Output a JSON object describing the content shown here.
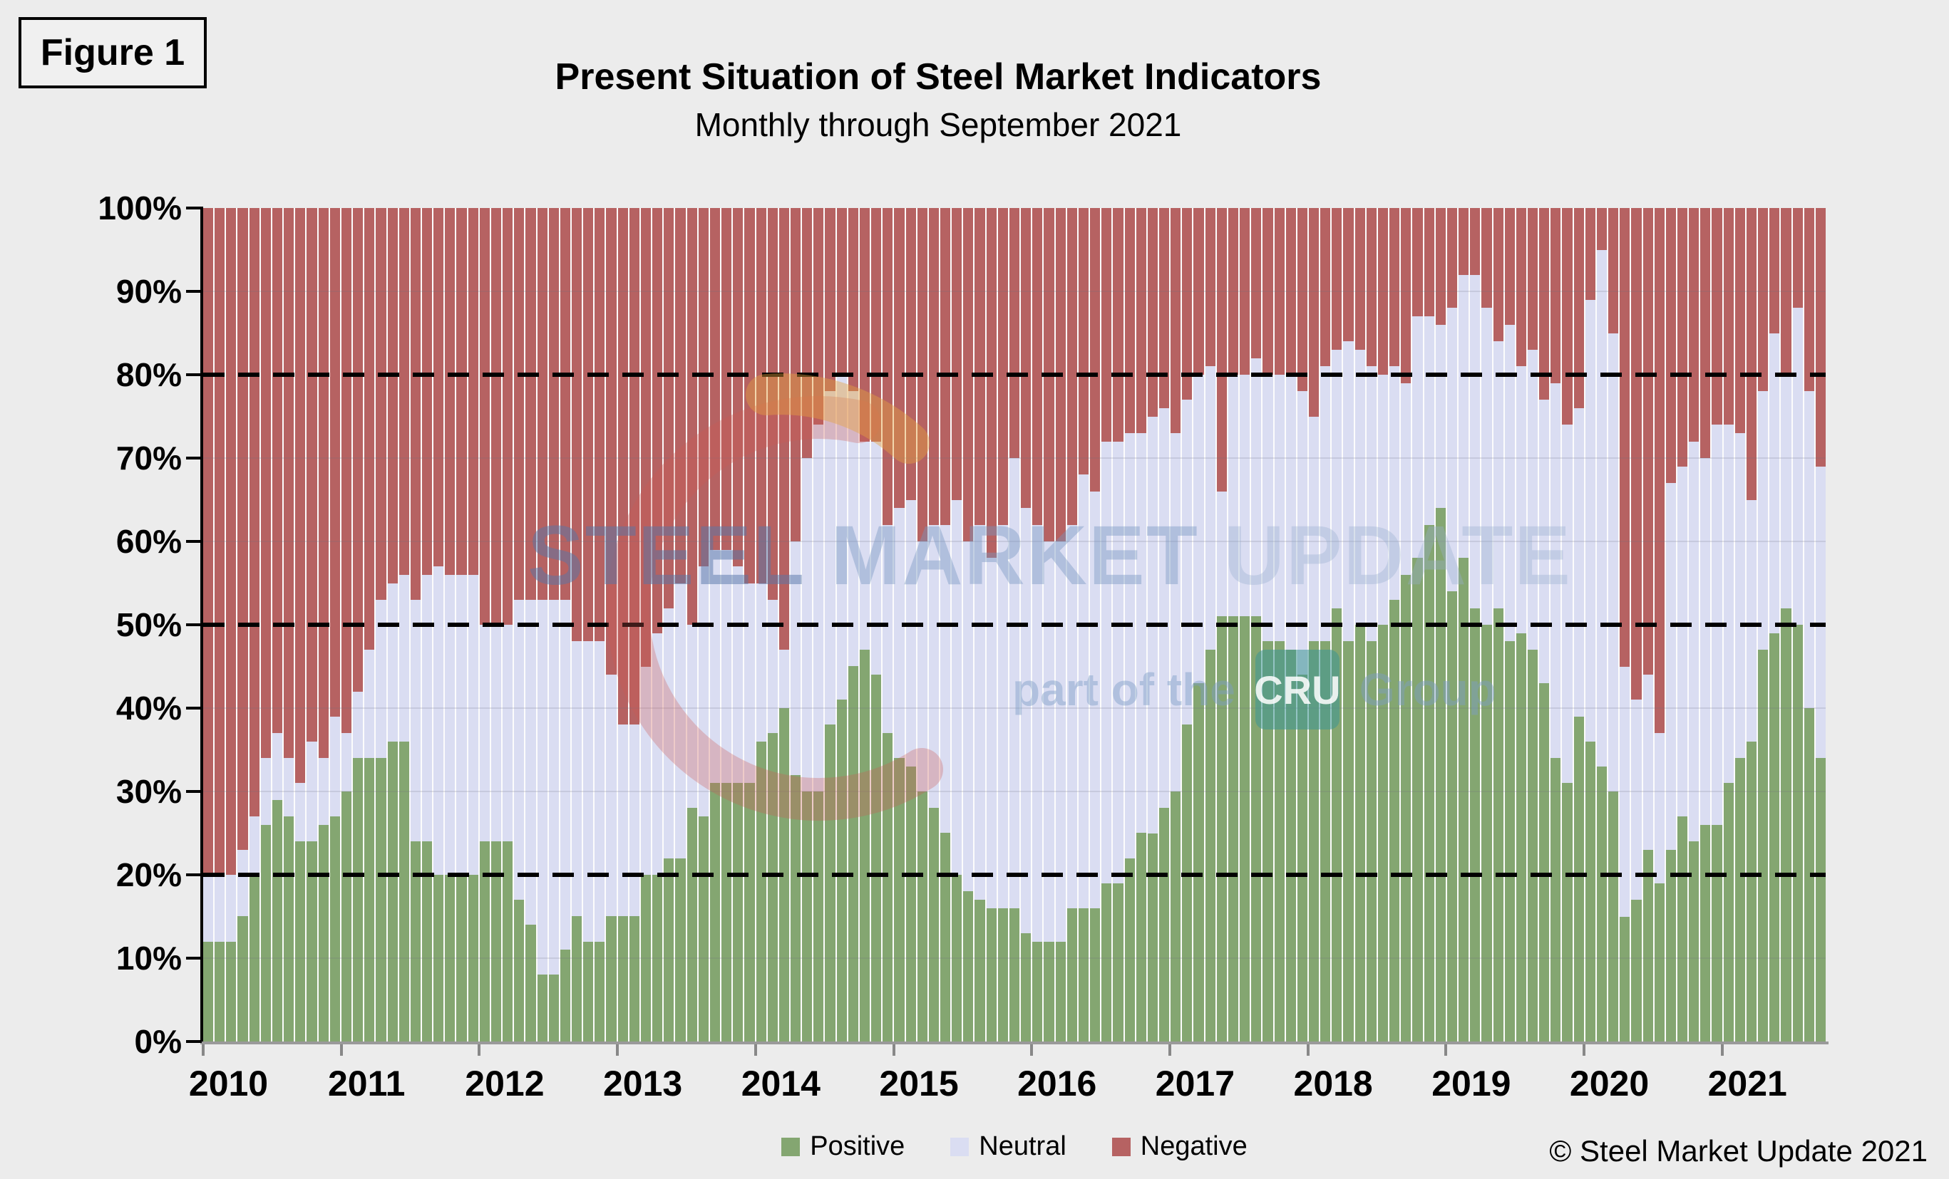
{
  "figure_label": "Figure 1",
  "title": "Present Situation of Steel Market Indicators",
  "subtitle": "Monthly through September 2021",
  "copyright": "© Steel Market Update 2021",
  "watermark": {
    "word1": "STEEL",
    "word2": "MARKET",
    "word3": "UPDATE",
    "line2_prefix": "part of the",
    "line2_box": "CRU",
    "line2_suffix": "Group"
  },
  "colors": {
    "positive": "#84A671",
    "neutral": "#DADDF2",
    "negative": "#B66262",
    "background": "#ECECEC",
    "dashed_line": "#000000",
    "watermark_blue": "#7E9CC4",
    "watermark_swoosh": "#CE5B52",
    "watermark_orange": "#E8A33D",
    "cru_teal": "#3E9694"
  },
  "legend": [
    {
      "label": "Positive",
      "color": "#84A671"
    },
    {
      "label": "Neutral",
      "color": "#DADDF2"
    },
    {
      "label": "Negative",
      "color": "#B66262"
    }
  ],
  "y_axis": {
    "ticks": [
      "100%",
      "90%",
      "80%",
      "70%",
      "60%",
      "50%",
      "40%",
      "30%",
      "20%",
      "10%",
      "0%"
    ],
    "min": 0,
    "max": 100,
    "dashed_gridlines": [
      20,
      50,
      80
    ],
    "minor_gridlines": [
      10,
      30,
      40,
      60,
      70,
      90
    ]
  },
  "chart_data": {
    "type": "bar",
    "stacking": "percent",
    "title": "Present Situation of Steel Market Indicators",
    "subtitle": "Monthly through September 2021",
    "xlabel": "",
    "ylabel": "",
    "ylim": [
      0,
      100
    ],
    "x_unit": "month",
    "start_month": "2010-01",
    "end_month": "2021-09",
    "series_names": [
      "Positive",
      "Neutral",
      "Negative"
    ],
    "years": [
      {
        "year": "2010",
        "positive": [
          12,
          12,
          12,
          15,
          20,
          26,
          29,
          27,
          24,
          24,
          26,
          27
        ],
        "neutral": [
          8,
          8,
          8,
          8,
          7,
          8,
          8,
          7,
          7,
          12,
          8,
          12
        ],
        "negative": [
          80,
          80,
          80,
          77,
          73,
          66,
          63,
          66,
          69,
          64,
          66,
          61
        ]
      },
      {
        "year": "2011",
        "positive": [
          30,
          34,
          34,
          34,
          36,
          36,
          24,
          24,
          20,
          20,
          20,
          20
        ],
        "neutral": [
          7,
          8,
          13,
          19,
          19,
          20,
          29,
          32,
          37,
          36,
          36,
          36
        ],
        "negative": [
          63,
          58,
          53,
          47,
          45,
          44,
          47,
          44,
          43,
          44,
          44,
          44
        ]
      },
      {
        "year": "2012",
        "positive": [
          24,
          24,
          24,
          17,
          14,
          8,
          8,
          11,
          15,
          12,
          12,
          15
        ],
        "neutral": [
          26,
          26,
          26,
          36,
          39,
          45,
          45,
          42,
          33,
          36,
          36,
          29
        ],
        "negative": [
          50,
          50,
          50,
          47,
          47,
          47,
          47,
          47,
          52,
          52,
          52,
          56
        ]
      },
      {
        "year": "2013",
        "positive": [
          15,
          15,
          20,
          20,
          22,
          22,
          28,
          27,
          31,
          31,
          31,
          31
        ],
        "neutral": [
          23,
          23,
          25,
          29,
          30,
          33,
          22,
          30,
          28,
          28,
          26,
          24
        ],
        "negative": [
          62,
          62,
          55,
          51,
          48,
          45,
          50,
          43,
          41,
          41,
          43,
          45
        ]
      },
      {
        "year": "2014",
        "positive": [
          36,
          37,
          40,
          32,
          30,
          30,
          38,
          41,
          45,
          47,
          44,
          37
        ],
        "neutral": [
          19,
          16,
          7,
          28,
          40,
          44,
          40,
          39,
          33,
          25,
          28,
          25
        ],
        "negative": [
          45,
          47,
          53,
          40,
          30,
          26,
          22,
          20,
          22,
          28,
          28,
          38
        ]
      },
      {
        "year": "2015",
        "positive": [
          34,
          33,
          30,
          28,
          25,
          20,
          18,
          17,
          16,
          16,
          16,
          13
        ],
        "neutral": [
          30,
          32,
          30,
          34,
          37,
          45,
          42,
          45,
          42,
          46,
          54,
          51
        ],
        "negative": [
          36,
          35,
          40,
          38,
          38,
          35,
          40,
          38,
          42,
          38,
          30,
          36
        ]
      },
      {
        "year": "2016",
        "positive": [
          12,
          12,
          12,
          16,
          16,
          16,
          19,
          19,
          22,
          25,
          25,
          28
        ],
        "neutral": [
          50,
          48,
          48,
          46,
          52,
          50,
          53,
          53,
          51,
          48,
          50,
          48
        ],
        "negative": [
          38,
          40,
          40,
          38,
          32,
          34,
          28,
          28,
          27,
          27,
          25,
          24
        ]
      },
      {
        "year": "2017",
        "positive": [
          30,
          38,
          43,
          47,
          51,
          51,
          51,
          51,
          48,
          48,
          47,
          44
        ],
        "neutral": [
          43,
          39,
          37,
          34,
          15,
          29,
          29,
          31,
          32,
          32,
          33,
          34
        ],
        "negative": [
          27,
          23,
          20,
          19,
          34,
          20,
          20,
          18,
          20,
          20,
          20,
          22
        ]
      },
      {
        "year": "2018",
        "positive": [
          48,
          48,
          52,
          48,
          50,
          48,
          50,
          53,
          56,
          58,
          62,
          64
        ],
        "neutral": [
          27,
          33,
          31,
          36,
          33,
          33,
          30,
          28,
          23,
          29,
          25,
          22
        ],
        "negative": [
          25,
          19,
          17,
          16,
          17,
          19,
          20,
          19,
          21,
          13,
          13,
          14
        ]
      },
      {
        "year": "2019",
        "positive": [
          54,
          58,
          52,
          50,
          52,
          48,
          49,
          47,
          43,
          34,
          31,
          39
        ],
        "neutral": [
          34,
          34,
          40,
          38,
          32,
          38,
          32,
          36,
          34,
          45,
          43,
          37
        ],
        "negative": [
          12,
          8,
          8,
          12,
          16,
          14,
          19,
          17,
          23,
          21,
          26,
          24
        ]
      },
      {
        "year": "2020",
        "positive": [
          36,
          33,
          30,
          15,
          17,
          23,
          19,
          23,
          27,
          24,
          26,
          26
        ],
        "neutral": [
          53,
          62,
          55,
          30,
          24,
          21,
          18,
          44,
          42,
          48,
          44,
          48
        ],
        "negative": [
          11,
          5,
          15,
          55,
          59,
          56,
          63,
          33,
          31,
          28,
          30,
          26
        ]
      },
      {
        "year": "2021",
        "positive": [
          31,
          34,
          36,
          47,
          49,
          52,
          50,
          40,
          34
        ],
        "neutral": [
          43,
          39,
          29,
          31,
          36,
          28,
          38,
          38,
          35
        ],
        "negative": [
          26,
          27,
          35,
          22,
          15,
          20,
          12,
          22,
          31
        ]
      }
    ]
  }
}
